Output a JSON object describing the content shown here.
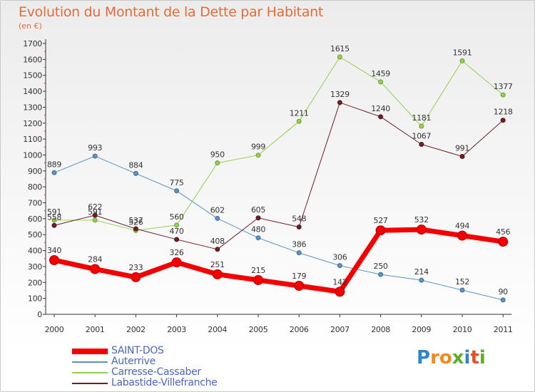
{
  "title": "Evolution du Montant de la Dette par Habitant",
  "unit_label": "(en €)",
  "logo": {
    "letters": [
      "P",
      "r",
      "o",
      "x",
      "i",
      "t",
      "i"
    ],
    "colors": [
      "#2f87c8",
      "#f08a1c",
      "#f08a1c",
      "#5cae2b",
      "#2f87c8",
      "#e54d26",
      "#5cae2b"
    ]
  },
  "chart_data": {
    "type": "line",
    "title": "Evolution du Montant de la Dette par Habitant",
    "ylabel": "(en €)",
    "xlabel": "",
    "x": [
      "2000",
      "2001",
      "2002",
      "2003",
      "2004",
      "2005",
      "2006",
      "2007",
      "2008",
      "2009",
      "2010",
      "2011"
    ],
    "ylim": [
      0,
      1700
    ],
    "yticks": [
      0,
      100,
      200,
      300,
      400,
      500,
      600,
      700,
      800,
      900,
      1000,
      1100,
      1200,
      1300,
      1400,
      1500,
      1600,
      1700
    ],
    "grid": false,
    "legend": "bottom-left",
    "series": [
      {
        "name": "Auterrive",
        "color": "#5b93c7",
        "width": 1,
        "values": [
          889,
          993,
          884,
          775,
          602,
          480,
          386,
          306,
          250,
          214,
          152,
          90
        ]
      },
      {
        "name": "Carresse-Cassaber",
        "color": "#92d14f",
        "width": 1,
        "values": [
          591,
          591,
          526,
          560,
          950,
          999,
          1211,
          1615,
          1459,
          1181,
          1591,
          1377
        ]
      },
      {
        "name": "Labastide-Villefranche",
        "color": "#6e1f24",
        "width": 1,
        "values": [
          558,
          622,
          537,
          470,
          408,
          605,
          548,
          1329,
          1240,
          1067,
          991,
          1218
        ]
      },
      {
        "name": "SAINT-DOS",
        "color": "#f40000",
        "width": 7,
        "values": [
          340,
          284,
          233,
          326,
          251,
          215,
          179,
          142,
          527,
          532,
          494,
          456
        ]
      }
    ],
    "legend_order": [
      "SAINT-DOS",
      "Auterrive",
      "Carresse-Cassaber",
      "Labastide-Villefranche"
    ]
  }
}
